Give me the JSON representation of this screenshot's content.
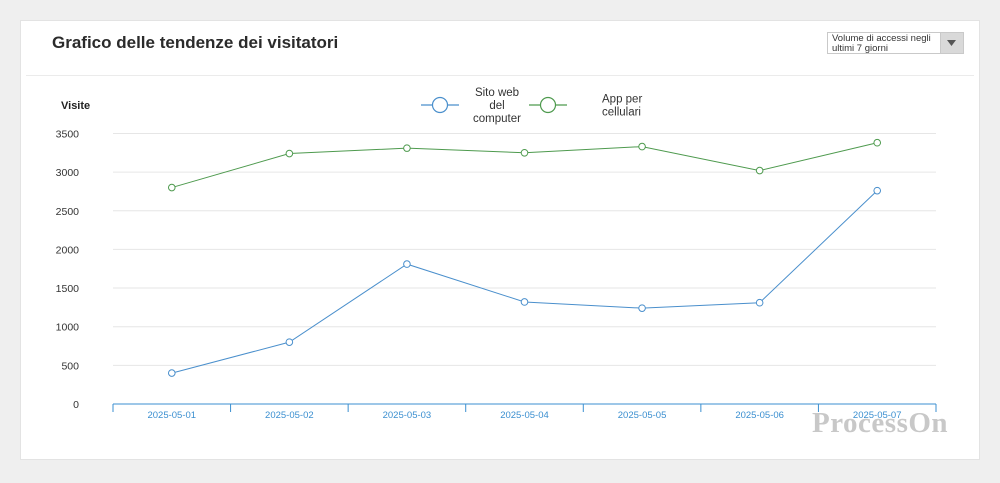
{
  "header": {
    "title": "Grafico delle tendenze dei visitatori",
    "range_select": "Volume di accessi negli ultimi 7 giorni"
  },
  "watermark": "ProcessOn",
  "colors": {
    "series_web": "#4a8fcc",
    "series_app": "#4e9a4e",
    "axis": "#3b8fd0",
    "grid": "#e6e6e6"
  },
  "chart_data": {
    "type": "line",
    "title": "Grafico delle tendenze dei visitatori",
    "ylabel": "Visite",
    "xlabel": "",
    "ylim": [
      0,
      3500
    ],
    "yticks": [
      0,
      500,
      1000,
      1500,
      2000,
      2500,
      3000,
      3500
    ],
    "grid": true,
    "legend_position": "top-center",
    "categories": [
      "2025-05-01",
      "2025-05-02",
      "2025-05-03",
      "2025-05-04",
      "2025-05-05",
      "2025-05-06",
      "2025-05-07"
    ],
    "series": [
      {
        "name": "Sito web del computer",
        "name_lines": [
          "Sito web",
          "del",
          "computer"
        ],
        "color": "#4a8fcc",
        "values": [
          400,
          800,
          1810,
          1320,
          1240,
          1310,
          2760
        ]
      },
      {
        "name": "App per cellulari",
        "name_lines": [
          "App per",
          "cellulari"
        ],
        "color": "#4e9a4e",
        "values": [
          2800,
          3240,
          3310,
          3250,
          3330,
          3020,
          3380
        ]
      }
    ]
  }
}
